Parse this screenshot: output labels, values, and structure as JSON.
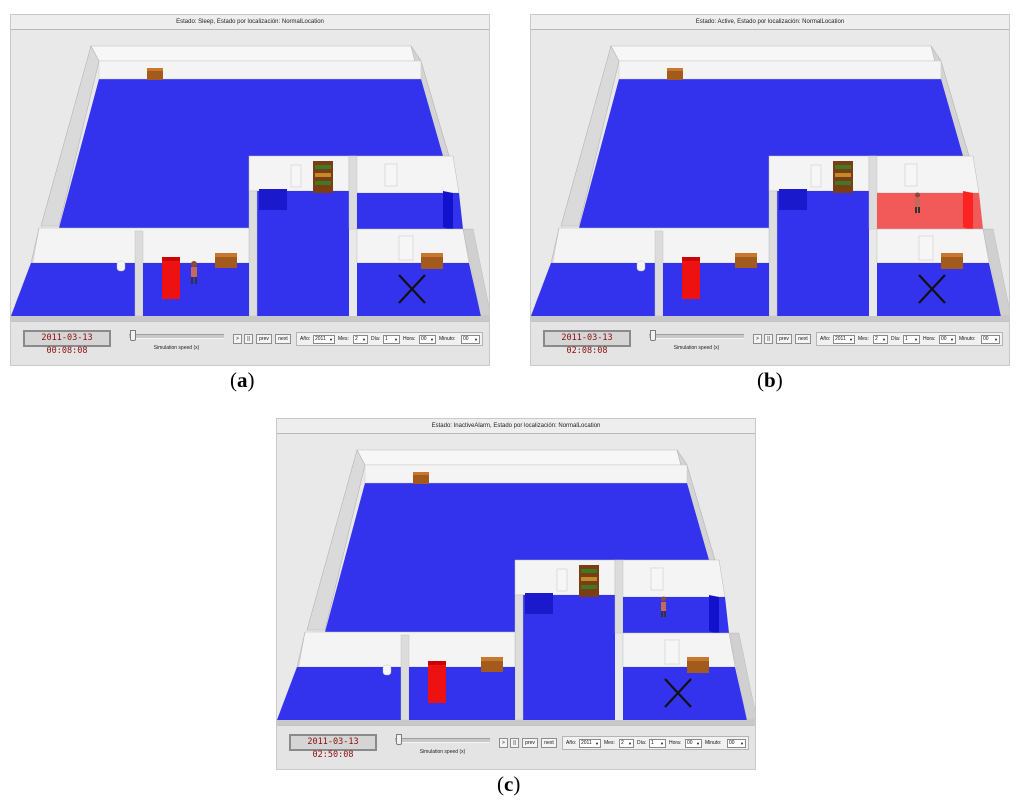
{
  "panels": [
    {
      "status": "Estado: Sleep, Estado por localización: NormalLocation",
      "clock": "2011-03-13 00:08:08",
      "speed_label": "Simulation speed (x)",
      "buttons": {
        "play": ">",
        "pause": "||",
        "prev": "prev",
        "next": "next"
      },
      "date": {
        "year_label": "Año:",
        "year": "2011",
        "month_label": "Mes:",
        "month": "2",
        "day_label": "Día:",
        "day": "1",
        "hour_label": "Hora:",
        "hour": "00",
        "minute_label": "Minuto:",
        "minute": "00"
      },
      "caption_open": "(",
      "caption_letter": "a",
      "caption_close": ")",
      "person_room": "bedroom",
      "alert_room": false
    },
    {
      "status": "Estado: Active, Estado por localización: NormalLocation",
      "clock": "2011-03-13 02:08:08",
      "speed_label": "Simulation speed (x)",
      "buttons": {
        "play": ">",
        "pause": "||",
        "prev": "prev",
        "next": "next"
      },
      "date": {
        "year_label": "Año:",
        "year": "2011",
        "month_label": "Mes:",
        "month": "2",
        "day_label": "Día:",
        "day": "1",
        "hour_label": "Hora:",
        "hour": "00",
        "minute_label": "Minuto:",
        "minute": "00"
      },
      "caption_open": "(",
      "caption_letter": "b",
      "caption_close": ")",
      "person_room": "bathroom",
      "alert_room": true
    },
    {
      "status": "Estado: InactiveAlarm, Estado por localización: NormalLocation",
      "clock": "2011-03-13 02:50:08",
      "speed_label": "Simulation speed (x)",
      "buttons": {
        "play": ">",
        "pause": "||",
        "prev": "prev",
        "next": "next"
      },
      "date": {
        "year_label": "Año:",
        "year": "2011",
        "month_label": "Mes:",
        "month": "2",
        "day_label": "Día:",
        "day": "1",
        "hour_label": "Hora:",
        "hour": "00",
        "minute_label": "Minuto:",
        "minute": "00"
      },
      "caption_open": "(",
      "caption_letter": "c",
      "caption_close": ")",
      "person_room": "bathroom",
      "alert_room": false
    }
  ],
  "colors": {
    "floor": "#3333ee",
    "alert_floor": "#f25a5a",
    "bed": "#ee1111",
    "wall": "#f2f2f2",
    "clock_text": "#8a0d0d"
  },
  "icons": {
    "marker": "cross-marker-icon",
    "person": "person-figure-icon",
    "furniture": "dresser-icon"
  }
}
